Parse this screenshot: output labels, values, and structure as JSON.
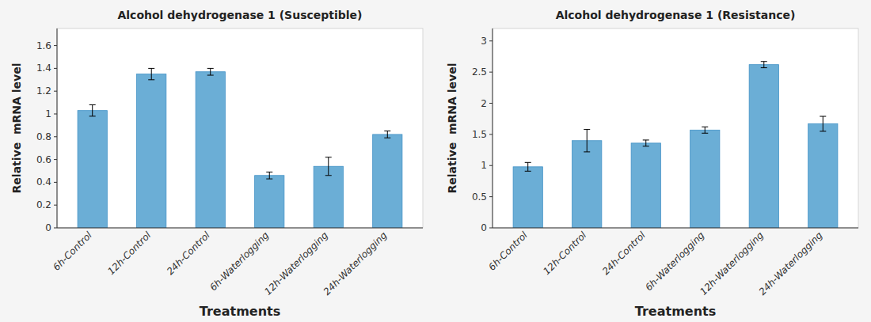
{
  "chart_data": [
    {
      "type": "bar",
      "title": "Alcohol dehydrogenase 1 (Susceptible)",
      "categories": [
        "6h-Control",
        "12h-Control",
        "24h-Control",
        "6h-Waterlogging",
        "12h-Waterlogging",
        "24h-Waterlogging"
      ],
      "values": [
        1.03,
        1.35,
        1.37,
        0.46,
        0.54,
        0.82
      ],
      "errors": [
        0.05,
        0.05,
        0.03,
        0.03,
        0.08,
        0.03
      ],
      "color": "#6baed6",
      "ylim": [
        0,
        1.75
      ],
      "yticks": [
        0,
        0.2,
        0.4,
        0.6,
        0.8,
        1,
        1.2,
        1.4,
        1.6
      ],
      "y_label": "Relative  mRNA level",
      "x_label": "Treatments",
      "grid": false
    },
    {
      "type": "bar",
      "title": "Alcohol dehydrogenase 1 (Resistance)",
      "categories": [
        "6h-Control",
        "12h-Control",
        "24h-Control",
        "6h-Waterlogging",
        "12h-Waterlogging",
        "24h-Waterlogging"
      ],
      "values": [
        0.98,
        1.4,
        1.36,
        1.57,
        2.62,
        1.67
      ],
      "errors": [
        0.07,
        0.18,
        0.05,
        0.05,
        0.05,
        0.12
      ],
      "color": "#6baed6",
      "ylim": [
        0,
        3.2
      ],
      "yticks": [
        0,
        0.5,
        1,
        1.5,
        2,
        2.5,
        3
      ],
      "y_label": "Relative  mRNA level",
      "x_label": "Treatments",
      "grid": false
    }
  ]
}
